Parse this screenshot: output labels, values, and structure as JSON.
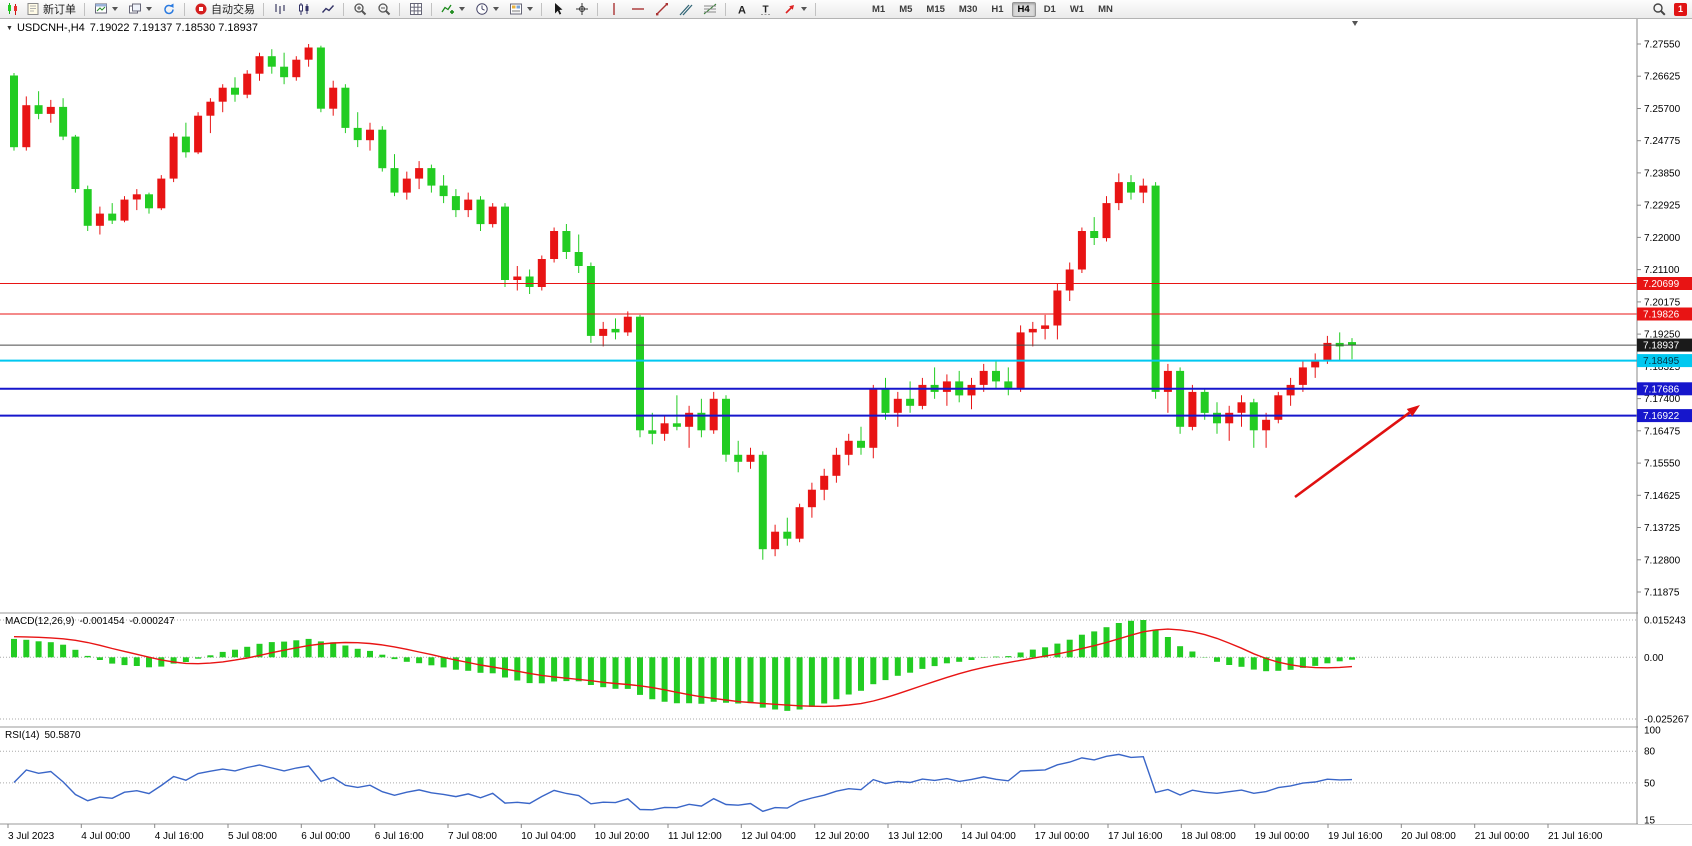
{
  "toolbar": {
    "new_order": "新订单",
    "autotrading": "自动交易",
    "timeframes": [
      "M1",
      "M5",
      "M15",
      "M30",
      "H1",
      "H4",
      "D1",
      "W1",
      "MN"
    ],
    "active_timeframe": "H4",
    "notification_badge": "1",
    "text_tool_glyph": "A",
    "label_tool_glyph": "T"
  },
  "symbol_header": {
    "symbol": "USDCNH-,H4",
    "quotes": "7.19022 7.19137 7.18530 7.18937"
  },
  "chart_data": {
    "type": "candlestick",
    "symbol": "USDCNH-",
    "timeframe": "H4",
    "colors": {
      "bull": "#e81414",
      "bear": "#22cc22",
      "background": "#ffffff",
      "axis_text": "#000000"
    },
    "price_axis": [
      "7.27550",
      "7.26625",
      "7.25700",
      "7.24775",
      "7.23850",
      "7.22925",
      "7.22000",
      "7.21100",
      "7.20175",
      "7.19250",
      "7.18325",
      "7.17400",
      "7.16475",
      "7.15550",
      "7.14625",
      "7.13725",
      "7.12800",
      "7.11875"
    ],
    "levels": [
      {
        "price": 7.20699,
        "label": "7.20699",
        "color": "#e81414",
        "width": 1,
        "tag_bg": "#e81414",
        "tag_fg": "#ffffff"
      },
      {
        "price": 7.19826,
        "label": "7.19826",
        "color": "#e81414",
        "width": 1,
        "tag_bg": "#e81414",
        "tag_fg": "#ffffff"
      },
      {
        "price": 7.18937,
        "label": "7.18937",
        "color": "#4a4a4a",
        "width": 1,
        "tag_bg": "#1a1a1a",
        "tag_fg": "#ffffff",
        "role": "current-price"
      },
      {
        "price": 7.18495,
        "label": "7.18495",
        "color": "#00c8f0",
        "width": 2,
        "tag_bg": "#00c8f0",
        "tag_fg": "#003344"
      },
      {
        "price": 7.17686,
        "label": "7.17686",
        "color": "#1616cc",
        "width": 2,
        "tag_bg": "#1616cc",
        "tag_fg": "#ffffff"
      },
      {
        "price": 7.16922,
        "label": "7.16922",
        "color": "#1616cc",
        "width": 2,
        "tag_bg": "#1616cc",
        "tag_fg": "#ffffff"
      }
    ],
    "candles": [
      [
        7.2665,
        7.2672,
        7.245,
        7.246
      ],
      [
        7.246,
        7.2605,
        7.245,
        7.258
      ],
      [
        7.258,
        7.262,
        7.254,
        7.2555
      ],
      [
        7.2555,
        7.2595,
        7.253,
        7.2575
      ],
      [
        7.2575,
        7.26,
        7.248,
        7.249
      ],
      [
        7.249,
        7.2495,
        7.233,
        7.234
      ],
      [
        7.234,
        7.235,
        7.222,
        7.2235
      ],
      [
        7.2235,
        7.229,
        7.221,
        7.227
      ],
      [
        7.227,
        7.23,
        7.224,
        7.225
      ],
      [
        7.225,
        7.232,
        7.2245,
        7.231
      ],
      [
        7.231,
        7.234,
        7.228,
        7.2325
      ],
      [
        7.2325,
        7.233,
        7.227,
        7.2285
      ],
      [
        7.2285,
        7.238,
        7.228,
        7.237
      ],
      [
        7.237,
        7.25,
        7.236,
        7.249
      ],
      [
        7.249,
        7.253,
        7.243,
        7.2445
      ],
      [
        7.2445,
        7.256,
        7.244,
        7.255
      ],
      [
        7.255,
        7.26,
        7.25,
        7.259
      ],
      [
        7.259,
        7.264,
        7.256,
        7.263
      ],
      [
        7.263,
        7.266,
        7.259,
        7.261
      ],
      [
        7.261,
        7.268,
        7.26,
        7.267
      ],
      [
        7.267,
        7.273,
        7.265,
        7.272
      ],
      [
        7.272,
        7.274,
        7.267,
        7.269
      ],
      [
        7.269,
        7.273,
        7.264,
        7.266
      ],
      [
        7.266,
        7.272,
        7.265,
        7.271
      ],
      [
        7.271,
        7.2755,
        7.269,
        7.2745
      ],
      [
        7.2745,
        7.275,
        7.256,
        7.257
      ],
      [
        7.257,
        7.265,
        7.255,
        7.263
      ],
      [
        7.263,
        7.264,
        7.25,
        7.2515
      ],
      [
        7.2515,
        7.256,
        7.246,
        7.248
      ],
      [
        7.248,
        7.253,
        7.245,
        7.251
      ],
      [
        7.251,
        7.252,
        7.239,
        7.24
      ],
      [
        7.24,
        7.244,
        7.232,
        7.233
      ],
      [
        7.233,
        7.239,
        7.231,
        7.237
      ],
      [
        7.237,
        7.242,
        7.234,
        7.24
      ],
      [
        7.24,
        7.241,
        7.233,
        7.235
      ],
      [
        7.235,
        7.238,
        7.23,
        7.232
      ],
      [
        7.232,
        7.234,
        7.226,
        7.228
      ],
      [
        7.228,
        7.233,
        7.226,
        7.231
      ],
      [
        7.231,
        7.232,
        7.222,
        7.224
      ],
      [
        7.224,
        7.23,
        7.223,
        7.229
      ],
      [
        7.229,
        7.23,
        7.206,
        7.208
      ],
      [
        7.208,
        7.212,
        7.205,
        7.209
      ],
      [
        7.209,
        7.211,
        7.204,
        7.206
      ],
      [
        7.206,
        7.215,
        7.205,
        7.214
      ],
      [
        7.214,
        7.223,
        7.213,
        7.222
      ],
      [
        7.222,
        7.224,
        7.214,
        7.216
      ],
      [
        7.216,
        7.221,
        7.21,
        7.212
      ],
      [
        7.212,
        7.213,
        7.19,
        7.192
      ],
      [
        7.192,
        7.196,
        7.189,
        7.194
      ],
      [
        7.194,
        7.197,
        7.191,
        7.193
      ],
      [
        7.193,
        7.199,
        7.192,
        7.1975
      ],
      [
        7.1975,
        7.198,
        7.163,
        7.165
      ],
      [
        7.165,
        7.17,
        7.161,
        7.164
      ],
      [
        7.164,
        7.169,
        7.162,
        7.167
      ],
      [
        7.167,
        7.175,
        7.165,
        7.166
      ],
      [
        7.166,
        7.172,
        7.16,
        7.17
      ],
      [
        7.17,
        7.174,
        7.163,
        7.165
      ],
      [
        7.165,
        7.176,
        7.164,
        7.174
      ],
      [
        7.174,
        7.175,
        7.156,
        7.158
      ],
      [
        7.158,
        7.162,
        7.153,
        7.156
      ],
      [
        7.156,
        7.16,
        7.154,
        7.158
      ],
      [
        7.158,
        7.159,
        7.128,
        7.131
      ],
      [
        7.131,
        7.138,
        7.129,
        7.136
      ],
      [
        7.136,
        7.14,
        7.132,
        7.134
      ],
      [
        7.134,
        7.144,
        7.133,
        7.143
      ],
      [
        7.143,
        7.15,
        7.14,
        7.148
      ],
      [
        7.148,
        7.154,
        7.145,
        7.152
      ],
      [
        7.152,
        7.16,
        7.15,
        7.158
      ],
      [
        7.158,
        7.164,
        7.155,
        7.162
      ],
      [
        7.162,
        7.166,
        7.158,
        7.16
      ],
      [
        7.16,
        7.178,
        7.157,
        7.177
      ],
      [
        7.177,
        7.18,
        7.168,
        7.17
      ],
      [
        7.17,
        7.176,
        7.166,
        7.174
      ],
      [
        7.174,
        7.179,
        7.17,
        7.172
      ],
      [
        7.172,
        7.18,
        7.171,
        7.178
      ],
      [
        7.178,
        7.183,
        7.174,
        7.176
      ],
      [
        7.176,
        7.181,
        7.172,
        7.179
      ],
      [
        7.179,
        7.182,
        7.173,
        7.175
      ],
      [
        7.175,
        7.18,
        7.171,
        7.178
      ],
      [
        7.178,
        7.184,
        7.176,
        7.182
      ],
      [
        7.182,
        7.185,
        7.177,
        7.179
      ],
      [
        7.179,
        7.183,
        7.175,
        7.177
      ],
      [
        7.177,
        7.195,
        7.176,
        7.193
      ],
      [
        7.193,
        7.196,
        7.189,
        7.194
      ],
      [
        7.194,
        7.198,
        7.191,
        7.195
      ],
      [
        7.195,
        7.207,
        7.191,
        7.205
      ],
      [
        7.205,
        7.213,
        7.202,
        7.211
      ],
      [
        7.211,
        7.223,
        7.21,
        7.222
      ],
      [
        7.222,
        7.226,
        7.218,
        7.22
      ],
      [
        7.22,
        7.232,
        7.219,
        7.23
      ],
      [
        7.23,
        7.2385,
        7.228,
        7.236
      ],
      [
        7.236,
        7.238,
        7.231,
        7.233
      ],
      [
        7.233,
        7.237,
        7.23,
        7.235
      ],
      [
        7.235,
        7.236,
        7.174,
        7.176
      ],
      [
        7.176,
        7.184,
        7.17,
        7.182
      ],
      [
        7.182,
        7.183,
        7.164,
        7.166
      ],
      [
        7.166,
        7.178,
        7.165,
        7.176
      ],
      [
        7.176,
        7.177,
        7.168,
        7.17
      ],
      [
        7.17,
        7.173,
        7.164,
        7.167
      ],
      [
        7.167,
        7.172,
        7.162,
        7.17
      ],
      [
        7.17,
        7.175,
        7.166,
        7.173
      ],
      [
        7.173,
        7.174,
        7.16,
        7.165
      ],
      [
        7.165,
        7.17,
        7.16,
        7.168
      ],
      [
        7.168,
        7.176,
        7.167,
        7.175
      ],
      [
        7.175,
        7.18,
        7.172,
        7.178
      ],
      [
        7.178,
        7.185,
        7.176,
        7.183
      ],
      [
        7.183,
        7.187,
        7.18,
        7.185
      ],
      [
        7.185,
        7.192,
        7.184,
        7.19
      ],
      [
        7.19,
        7.193,
        7.185,
        7.189
      ],
      [
        7.19022,
        7.19137,
        7.1853,
        7.18937
      ]
    ],
    "time_axis": [
      "3 Jul 2023",
      "4 Jul 00:00",
      "4 Jul 16:00",
      "5 Jul 08:00",
      "6 Jul 00:00",
      "6 Jul 16:00",
      "7 Jul 08:00",
      "10 Jul 04:00",
      "10 Jul 20:00",
      "11 Jul 12:00",
      "12 Jul 04:00",
      "12 Jul 20:00",
      "13 Jul 12:00",
      "14 Jul 04:00",
      "17 Jul 00:00",
      "17 Jul 16:00",
      "18 Jul 08:00",
      "19 Jul 00:00",
      "19 Jul 16:00",
      "20 Jul 08:00",
      "21 Jul 00:00",
      "21 Jul 16:00"
    ],
    "macd": {
      "label": "MACD(12,26,9)",
      "value_main": "-0.001454",
      "value_signal": "-0.000247",
      "axis": [
        "0.015243",
        "0.00",
        "-0.025267"
      ],
      "histogram_color": "#22cc22",
      "signal_color": "#e81414",
      "params": [
        12,
        26,
        9
      ]
    },
    "rsi": {
      "label": "RSI(14)",
      "value": "50.5870",
      "axis": [
        "100",
        "80",
        "50",
        "15"
      ],
      "levels_dotted": [
        80,
        50
      ],
      "line_color": "#3a66c8",
      "period": 14
    },
    "arrow": {
      "from": [
        1295,
        497
      ],
      "to": [
        1420,
        405
      ],
      "color": "#e01010"
    }
  }
}
